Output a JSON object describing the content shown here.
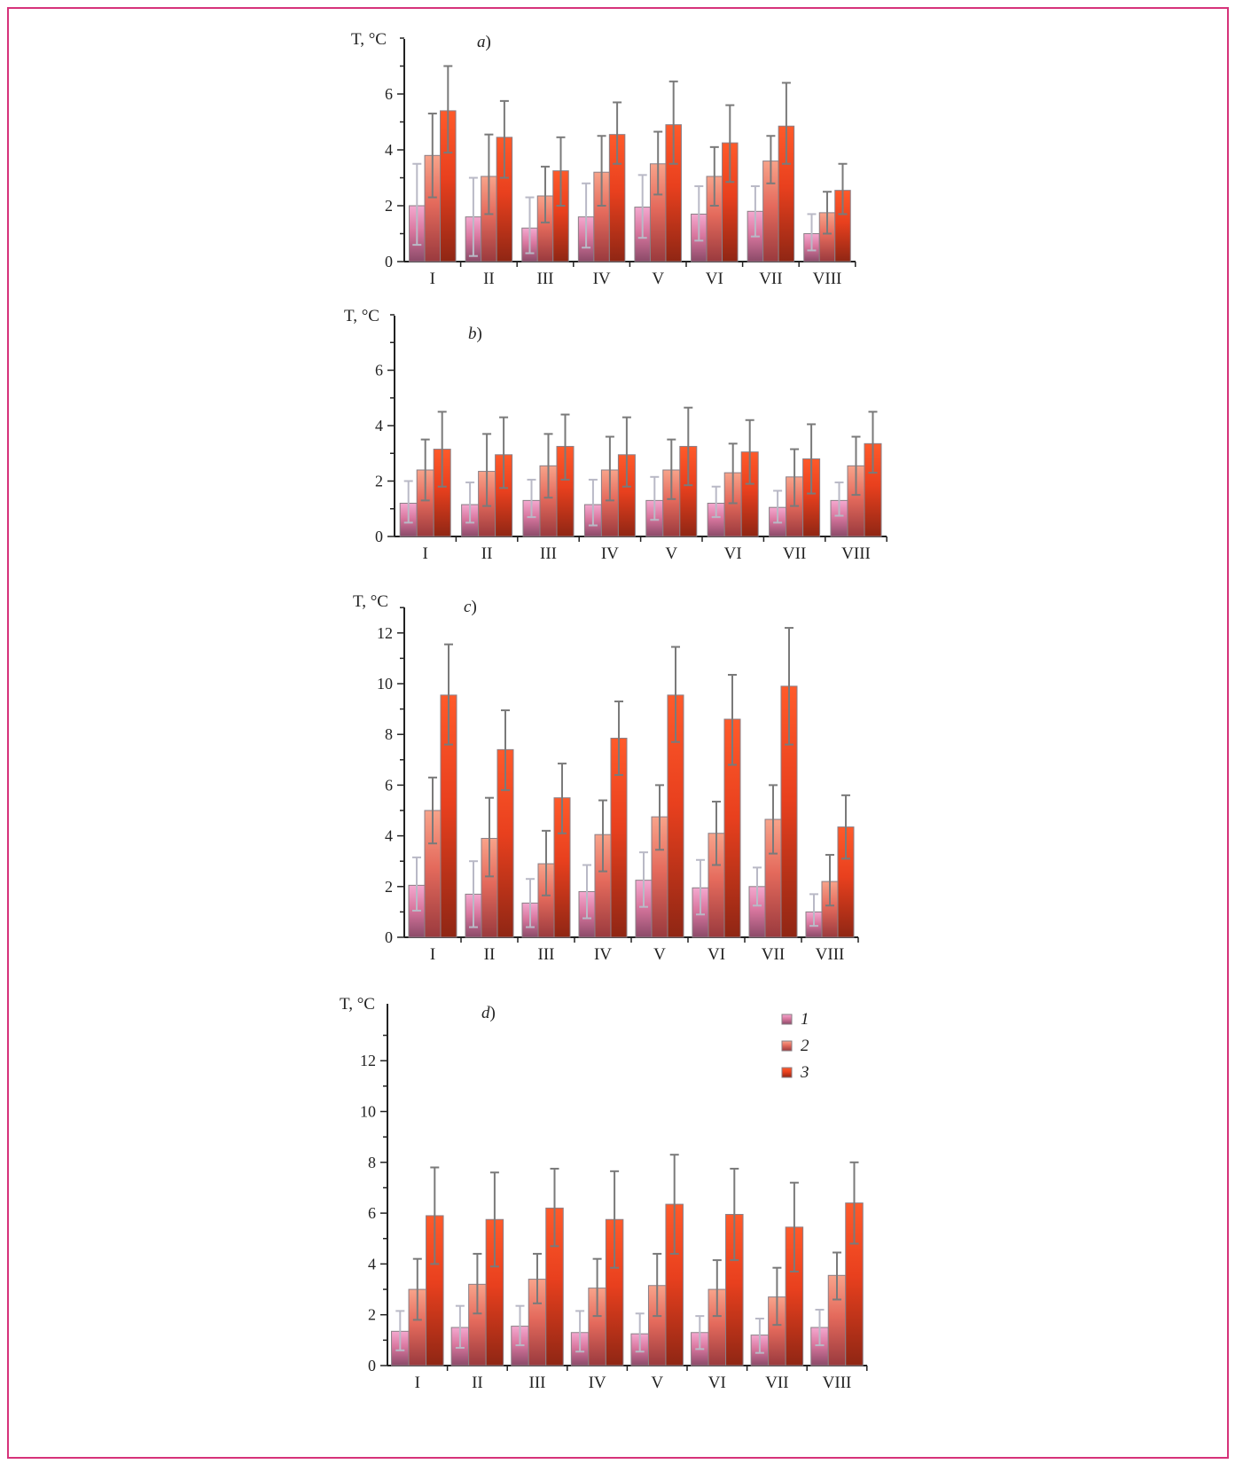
{
  "colors": {
    "series_1": [
      "#f4a8cf",
      "#d9779f",
      "#8b4a68"
    ],
    "series_2": [
      "#f8a38a",
      "#e46a5c",
      "#9a3a3e"
    ],
    "series_3": [
      "#ff5a2a",
      "#e8401e",
      "#8f2614"
    ],
    "error_bar_1": "#b9b9c6",
    "error_bar": "#7a7a7a",
    "frame": "#d6337a"
  },
  "chart_data": [
    {
      "type": "bar",
      "panel": "a",
      "ylabel": "T, °C",
      "ylim": [
        0,
        8
      ],
      "yticks": [
        0,
        2,
        4,
        6
      ],
      "categories": [
        "I",
        "II",
        "III",
        "IV",
        "V",
        "VI",
        "VII",
        "VIII"
      ],
      "series": [
        {
          "name": "1",
          "values": [
            2.0,
            1.6,
            1.2,
            1.6,
            1.95,
            1.7,
            1.8,
            1.0
          ],
          "err_low": [
            0.6,
            0.2,
            0.3,
            0.5,
            0.85,
            0.75,
            0.9,
            0.4
          ],
          "err_high": [
            3.5,
            3.0,
            2.3,
            2.8,
            3.1,
            2.7,
            2.7,
            1.7
          ]
        },
        {
          "name": "2",
          "values": [
            3.8,
            3.05,
            2.35,
            3.2,
            3.5,
            3.05,
            3.6,
            1.75
          ],
          "err_low": [
            2.3,
            1.7,
            1.4,
            2.0,
            2.4,
            2.0,
            2.8,
            1.0
          ],
          "err_high": [
            5.3,
            4.55,
            3.4,
            4.5,
            4.65,
            4.1,
            4.5,
            2.5
          ]
        },
        {
          "name": "3",
          "values": [
            5.4,
            4.45,
            3.25,
            4.55,
            4.9,
            4.25,
            4.85,
            2.55
          ],
          "err_low": [
            3.9,
            3.0,
            2.0,
            3.5,
            3.5,
            2.85,
            3.5,
            1.7
          ],
          "err_high": [
            7.0,
            5.75,
            4.45,
            5.7,
            6.45,
            5.6,
            6.4,
            3.5
          ]
        }
      ]
    },
    {
      "type": "bar",
      "panel": "b",
      "ylabel": "T, °C",
      "ylim": [
        0,
        8
      ],
      "yticks": [
        0,
        2,
        4,
        6
      ],
      "categories": [
        "I",
        "II",
        "III",
        "IV",
        "V",
        "VI",
        "VII",
        "VIII"
      ],
      "series": [
        {
          "name": "1",
          "values": [
            1.2,
            1.15,
            1.3,
            1.15,
            1.3,
            1.2,
            1.05,
            1.3
          ],
          "err_low": [
            0.5,
            0.5,
            0.7,
            0.4,
            0.6,
            0.7,
            0.5,
            0.75
          ],
          "err_high": [
            2.0,
            1.95,
            2.05,
            2.05,
            2.15,
            1.8,
            1.65,
            1.95
          ]
        },
        {
          "name": "2",
          "values": [
            2.4,
            2.35,
            2.55,
            2.4,
            2.4,
            2.3,
            2.15,
            2.55
          ],
          "err_low": [
            1.3,
            1.1,
            1.4,
            1.3,
            1.35,
            1.2,
            1.1,
            1.5
          ],
          "err_high": [
            3.5,
            3.7,
            3.7,
            3.6,
            3.5,
            3.35,
            3.15,
            3.6
          ]
        },
        {
          "name": "3",
          "values": [
            3.15,
            2.95,
            3.25,
            2.95,
            3.25,
            3.05,
            2.8,
            3.35
          ],
          "err_low": [
            1.8,
            1.75,
            2.05,
            1.8,
            1.85,
            1.9,
            1.55,
            2.3
          ],
          "err_high": [
            4.5,
            4.3,
            4.4,
            4.3,
            4.65,
            4.2,
            4.05,
            4.5
          ]
        }
      ]
    },
    {
      "type": "bar",
      "panel": "c",
      "ylabel": "T, °C",
      "ylim": [
        0,
        13
      ],
      "yticks": [
        0,
        2,
        4,
        6,
        8,
        10,
        12
      ],
      "categories": [
        "I",
        "II",
        "III",
        "IV",
        "V",
        "VI",
        "VII",
        "VIII"
      ],
      "series": [
        {
          "name": "1",
          "values": [
            2.05,
            1.7,
            1.35,
            1.8,
            2.25,
            1.95,
            2.0,
            1.0
          ],
          "err_low": [
            1.05,
            0.4,
            0.4,
            0.75,
            1.2,
            0.9,
            1.25,
            0.45
          ],
          "err_high": [
            3.15,
            3.0,
            2.3,
            2.85,
            3.35,
            3.05,
            2.75,
            1.7
          ]
        },
        {
          "name": "2",
          "values": [
            5.0,
            3.9,
            2.9,
            4.05,
            4.75,
            4.1,
            4.65,
            2.2
          ],
          "err_low": [
            3.7,
            2.4,
            1.65,
            2.6,
            3.45,
            2.85,
            3.3,
            1.25
          ],
          "err_high": [
            6.3,
            5.5,
            4.2,
            5.4,
            6.0,
            5.35,
            6.0,
            3.25
          ]
        },
        {
          "name": "3",
          "values": [
            9.55,
            7.4,
            5.5,
            7.85,
            9.55,
            8.6,
            9.9,
            4.35
          ],
          "err_low": [
            7.6,
            5.8,
            4.1,
            6.4,
            7.7,
            6.8,
            7.6,
            3.1
          ],
          "err_high": [
            11.55,
            8.95,
            6.85,
            9.3,
            11.45,
            10.35,
            12.2,
            5.6
          ]
        }
      ]
    },
    {
      "type": "bar",
      "panel": "d",
      "ylabel": "T, °C",
      "ylim": [
        0,
        13
      ],
      "yticks": [
        0,
        2,
        4,
        6,
        8,
        10,
        12
      ],
      "legend": [
        "1",
        "2",
        "3"
      ],
      "categories": [
        "I",
        "II",
        "III",
        "IV",
        "V",
        "VI",
        "VII",
        "VIII"
      ],
      "series": [
        {
          "name": "1",
          "values": [
            1.35,
            1.5,
            1.55,
            1.3,
            1.25,
            1.3,
            1.2,
            1.5
          ],
          "err_low": [
            0.6,
            0.7,
            0.8,
            0.55,
            0.55,
            0.65,
            0.5,
            0.8
          ],
          "err_high": [
            2.15,
            2.35,
            2.35,
            2.15,
            2.05,
            1.95,
            1.85,
            2.2
          ]
        },
        {
          "name": "2",
          "values": [
            3.0,
            3.2,
            3.4,
            3.05,
            3.15,
            3.0,
            2.7,
            3.55
          ],
          "err_low": [
            1.8,
            2.05,
            2.45,
            1.95,
            1.95,
            1.95,
            1.6,
            2.6
          ],
          "err_high": [
            4.2,
            4.4,
            4.4,
            4.2,
            4.4,
            4.15,
            3.85,
            4.45
          ]
        },
        {
          "name": "3",
          "values": [
            5.9,
            5.75,
            6.2,
            5.75,
            6.35,
            5.95,
            5.45,
            6.4
          ],
          "err_low": [
            4.0,
            3.9,
            4.7,
            3.85,
            4.4,
            4.15,
            3.7,
            4.8
          ],
          "err_high": [
            7.8,
            7.6,
            7.75,
            7.65,
            8.3,
            7.75,
            7.2,
            8.0
          ]
        }
      ]
    }
  ]
}
